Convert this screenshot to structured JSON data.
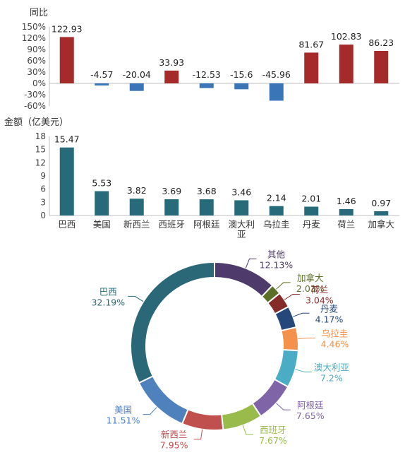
{
  "chart_data": [
    {
      "type": "bar",
      "ylabel": "同比",
      "categories": [
        "巴西",
        "美国",
        "新西兰",
        "西班牙",
        "阿根廷",
        "澳大利亚",
        "乌拉圭",
        "丹麦",
        "荷兰",
        "加拿大"
      ],
      "values": [
        122.93,
        -4.57,
        -20.04,
        33.93,
        -12.53,
        -15.6,
        -45.96,
        81.67,
        102.83,
        86.23
      ],
      "value_labels": [
        "122.93",
        "-4.57",
        "-20.04",
        "33.93",
        "-12.53",
        "-15.6",
        "-45.96",
        "81.67",
        "102.83",
        "86.23"
      ],
      "ylim": [
        -60,
        150
      ],
      "yticks": [
        "150%",
        "120%",
        "90%",
        "60%",
        "30%",
        "0%",
        "-30%",
        "-60%"
      ],
      "ytick_values": [
        150,
        120,
        90,
        60,
        30,
        0,
        -30,
        -60
      ],
      "colors": {
        "positive": "#A52A2A",
        "negative": "#3A75B8"
      }
    },
    {
      "type": "bar",
      "ylabel": "金额（亿美元）",
      "categories": [
        "巴西",
        "美国",
        "新西兰",
        "西班牙",
        "阿根廷",
        "澳大利亚",
        "乌拉圭",
        "丹麦",
        "荷兰",
        "加拿大"
      ],
      "category_labels": [
        [
          "巴西"
        ],
        [
          "美国"
        ],
        [
          "新西兰"
        ],
        [
          "西班牙"
        ],
        [
          "阿根廷"
        ],
        [
          "澳大利",
          "亚"
        ],
        [
          "乌拉圭"
        ],
        [
          "丹麦"
        ],
        [
          "荷兰"
        ],
        [
          "加拿大"
        ]
      ],
      "values": [
        15.47,
        5.53,
        3.82,
        3.69,
        3.68,
        3.46,
        2.14,
        2.01,
        1.46,
        0.97
      ],
      "value_labels": [
        "15.47",
        "5.53",
        "3.82",
        "3.69",
        "3.68",
        "3.46",
        "2.14",
        "2.01",
        "1.46",
        "0.97"
      ],
      "ylim": [
        0,
        18
      ],
      "yticks": [
        "18",
        "15",
        "12",
        "9",
        "6",
        "3",
        "0"
      ],
      "ytick_values": [
        18,
        15,
        12,
        9,
        6,
        3,
        0
      ],
      "color": "#276B7A"
    },
    {
      "type": "pie",
      "slices": [
        {
          "label": "其他",
          "value": 12.13,
          "pct": "12.13%",
          "color": "#4E3B6C"
        },
        {
          "label": "加拿大",
          "value": 2.03,
          "pct": "2.03%",
          "color": "#5B7026"
        },
        {
          "label": "荷兰",
          "value": 3.04,
          "pct": "3.04%",
          "color": "#862A2A"
        },
        {
          "label": "丹麦",
          "value": 4.17,
          "pct": "4.17%",
          "color": "#25477A"
        },
        {
          "label": "乌拉圭",
          "value": 4.46,
          "pct": "4.46%",
          "color": "#F4914A"
        },
        {
          "label": "澳大利亚",
          "value": 7.2,
          "pct": "7.2%",
          "color": "#4AACC5"
        },
        {
          "label": "阿根廷",
          "value": 7.65,
          "pct": "7.65%",
          "color": "#7F64A8"
        },
        {
          "label": "西班牙",
          "value": 7.67,
          "pct": "7.67%",
          "color": "#98BB4C"
        },
        {
          "label": "新西兰",
          "value": 7.95,
          "pct": "7.95%",
          "color": "#C0504D"
        },
        {
          "label": "美国",
          "value": 11.51,
          "pct": "11.51%",
          "color": "#4F81BD"
        },
        {
          "label": "巴西",
          "value": 32.19,
          "pct": "32.19%",
          "color": "#2A6878"
        }
      ]
    }
  ]
}
